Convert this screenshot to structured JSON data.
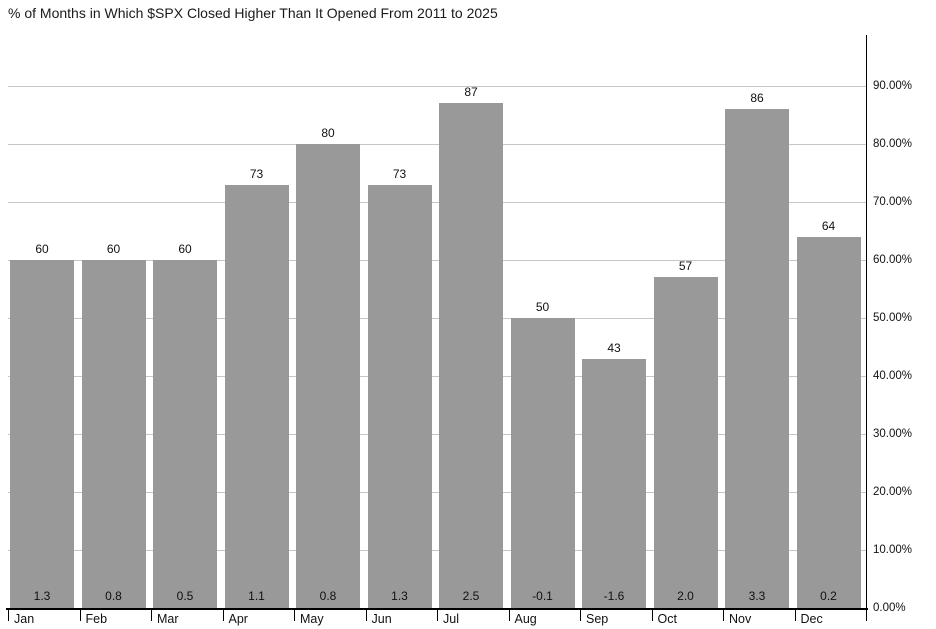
{
  "chart_data": {
    "type": "bar",
    "title": "% of Months in Which $SPX Closed Higher Than It Opened From 2011 to 2025",
    "categories": [
      "Jan",
      "Feb",
      "Mar",
      "Apr",
      "May",
      "Jun",
      "Jul",
      "Aug",
      "Sep",
      "Oct",
      "Nov",
      "Dec"
    ],
    "series": [
      {
        "name": "pct_of_months_closed_higher",
        "values": [
          60,
          60,
          60,
          73,
          80,
          73,
          87,
          50,
          43,
          57,
          86,
          64
        ]
      },
      {
        "name": "bottom_row_values",
        "values": [
          "1.3",
          "0.8",
          "0.5",
          "1.1",
          "0.8",
          "1.3",
          "2.5",
          "-0.1",
          "-1.6",
          "2.0",
          "3.3",
          "0.2"
        ]
      }
    ],
    "xlabel": "",
    "ylabel": "",
    "ylim": [
      0,
      100
    ],
    "ytick_labels": [
      "0.00%",
      "10.00%",
      "20.00%",
      "30.00%",
      "40.00%",
      "50.00%",
      "60.00%",
      "70.00%",
      "80.00%",
      "90.00%"
    ],
    "y_axis_position": "right",
    "grid": true,
    "legend_position": "none",
    "colors": {
      "bar": "#999999",
      "gridline": "#c6c6c6",
      "axis": "#000000",
      "text": "#111111",
      "background": "#ffffff"
    }
  }
}
